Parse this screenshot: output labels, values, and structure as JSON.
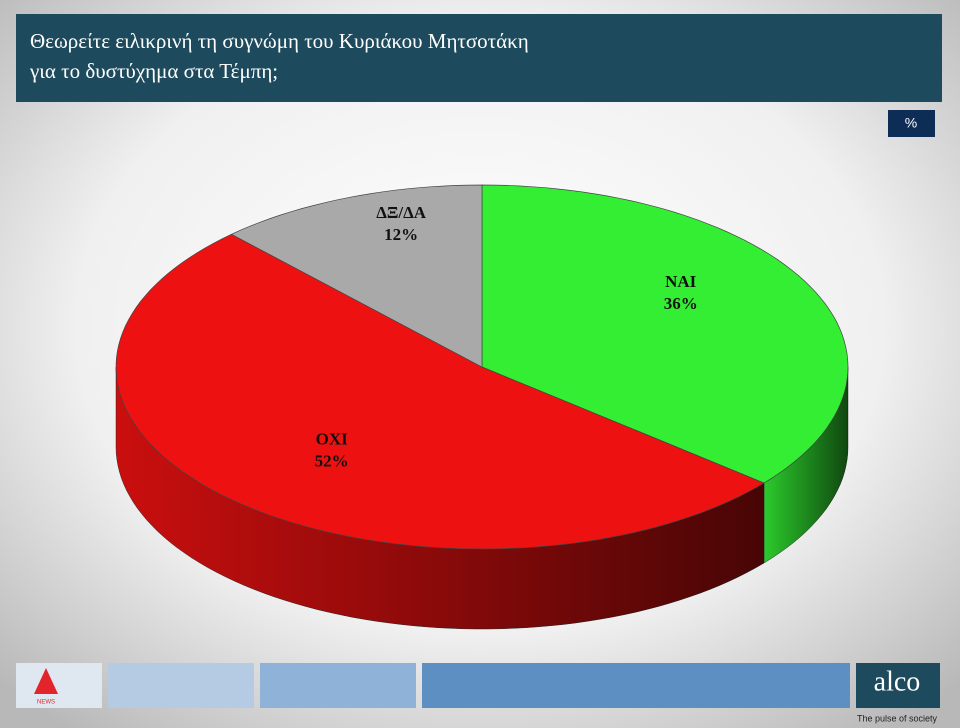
{
  "chart_data": {
    "type": "pie",
    "title": [
      "Θεωρείτε ειλικρινή τη συγνώμη του Κυριάκου Μητσοτάκη",
      "για το δυστύχημα στα Τέμπη;"
    ],
    "unit": "%",
    "categories": [
      "ΝΑΙ",
      "ΟΧΙ",
      "ΔΞ/ΔΑ"
    ],
    "values": [
      36,
      52,
      12
    ],
    "value_labels": [
      "36%",
      "52%",
      "12%"
    ],
    "colors": [
      "#33ee33",
      "#ee1111",
      "#a9a9a9"
    ]
  },
  "footer": {
    "channel": "NEWS",
    "brand": "alco",
    "tagline": "The pulse of society"
  }
}
